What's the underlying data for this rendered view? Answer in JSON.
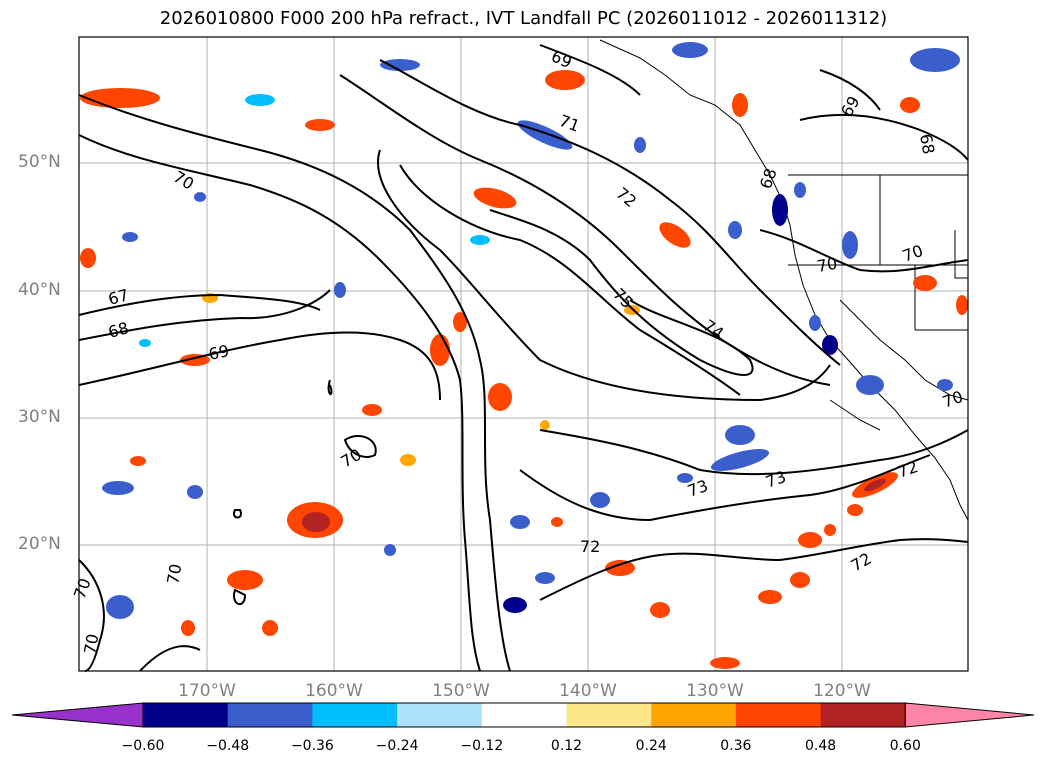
{
  "title": "2026010800 F000 200 hPa refract., IVT Landfall PC (2026011012 - 2026011312)",
  "lat_labels": [
    "50°N",
    "40°N",
    "30°N",
    "20°N"
  ],
  "lon_labels": [
    "170°W",
    "160°W",
    "150°W",
    "140°W",
    "130°W",
    "120°W"
  ],
  "colorbar": {
    "ticks": [
      "−0.60",
      "−0.48",
      "−0.36",
      "−0.24",
      "−0.12",
      "0.12",
      "0.24",
      "0.36",
      "0.48",
      "0.60"
    ],
    "colors": [
      "#9932CC",
      "#00008B",
      "#3A5FCD",
      "#00BFFF",
      "#ADE2FA",
      "#FFFFFF",
      "#FDE68A",
      "#FFA500",
      "#FF4500",
      "#B22222",
      "#FF85A8"
    ]
  },
  "contour_labels": [
    "69",
    "71",
    "72",
    "75",
    "74",
    "73",
    "73",
    "72",
    "70",
    "67",
    "68",
    "69",
    "70",
    "70",
    "70",
    "70",
    "72",
    "72",
    "69",
    "68",
    "68",
    "70",
    "70",
    "70"
  ]
}
